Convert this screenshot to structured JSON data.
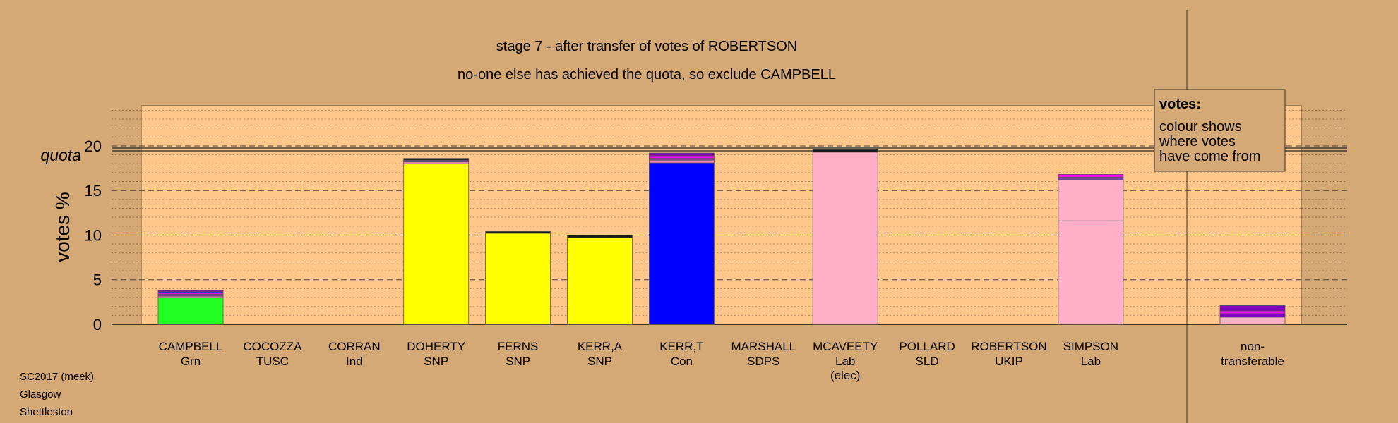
{
  "chart_data": {
    "type": "bar",
    "title": "stage 7 - after transfer of votes of ROBERTSON",
    "subtitle": "no-one else has achieved the quota, so exclude CAMPBELL",
    "ylabel": "votes %",
    "ylim": [
      0,
      24.5
    ],
    "yticks": [
      0,
      5,
      10,
      15,
      20
    ],
    "quota": 19.6,
    "quota_label": "quota",
    "grid": true,
    "legend_placement": "top-right",
    "legend": {
      "title": "votes:",
      "lines": [
        "colour shows",
        "where votes",
        "have come from"
      ]
    },
    "candidates": [
      {
        "name": "CAMPBELL",
        "party": "Grn",
        "extra": "",
        "base_color": "#22FF22",
        "segments": [
          {
            "value": 3.0,
            "color": "#22FF22"
          },
          {
            "value": 0.15,
            "color": "#FF88C0"
          },
          {
            "value": 0.2,
            "color": "#7F3F9F"
          },
          {
            "value": 0.15,
            "color": "#FF00FF"
          },
          {
            "value": 0.15,
            "color": "#2020FF"
          },
          {
            "value": 0.15,
            "color": "#8000C0"
          }
        ]
      },
      {
        "name": "COCOZZA",
        "party": "TUSC",
        "extra": "",
        "base_color": "#E00000",
        "segments": []
      },
      {
        "name": "CORRAN",
        "party": "Ind",
        "extra": "",
        "base_color": "#C0C0C0",
        "segments": []
      },
      {
        "name": "DOHERTY",
        "party": "SNP",
        "extra": "",
        "base_color": "#FFFF00",
        "segments": [
          {
            "value": 18.0,
            "color": "#FFFF00"
          },
          {
            "value": 0.2,
            "color": "#FF88C0"
          },
          {
            "value": 0.2,
            "color": "#7F3F9F"
          },
          {
            "value": 0.2,
            "color": "#1A1A1A"
          }
        ]
      },
      {
        "name": "FERNS",
        "party": "SNP",
        "extra": "",
        "base_color": "#FFFF00",
        "segments": [
          {
            "value": 10.2,
            "color": "#FFFF00"
          },
          {
            "value": 0.2,
            "color": "#1A1A1A"
          }
        ]
      },
      {
        "name": "KERR,A",
        "party": "SNP",
        "extra": "",
        "base_color": "#FFFF00",
        "segments": [
          {
            "value": 9.7,
            "color": "#FFFF00"
          },
          {
            "value": 0.3,
            "color": "#1A1A1A"
          }
        ]
      },
      {
        "name": "KERR,T",
        "party": "Con",
        "extra": "",
        "base_color": "#0000FF",
        "segments": [
          {
            "value": 18.1,
            "color": "#0000FF"
          },
          {
            "value": 0.3,
            "color": "#FF88C0"
          },
          {
            "value": 0.2,
            "color": "#7F3F9F"
          },
          {
            "value": 0.3,
            "color": "#FF00FF"
          },
          {
            "value": 0.3,
            "color": "#8000C0"
          }
        ]
      },
      {
        "name": "MARSHALL",
        "party": "SDPS",
        "extra": "",
        "base_color": "#800080",
        "segments": []
      },
      {
        "name": "MCAVEETY",
        "party": "Lab",
        "extra": "(elec)",
        "base_color": "#FFB0C8",
        "segments": [
          {
            "value": 19.3,
            "color": "#FFB0C8"
          },
          {
            "value": 0.3,
            "color": "#1A1A1A"
          }
        ]
      },
      {
        "name": "POLLARD",
        "party": "SLD",
        "extra": "",
        "base_color": "#FFA500",
        "segments": []
      },
      {
        "name": "ROBERTSON",
        "party": "UKIP",
        "extra": "",
        "base_color": "#8000C0",
        "segments": []
      },
      {
        "name": "SIMPSON",
        "party": "Lab",
        "extra": "",
        "base_color": "#FFB0C8",
        "segments": [
          {
            "value": 11.6,
            "color": "#FFB0C8"
          },
          {
            "value": 4.6,
            "color": "#FFB0C8"
          },
          {
            "value": 0.3,
            "color": "#7F3F9F"
          },
          {
            "value": 0.3,
            "color": "#FF00FF"
          }
        ]
      },
      {
        "name": "non-",
        "party": "transferable",
        "extra": "",
        "base_color": "#FFB0C8",
        "segments": [
          {
            "value": 0.8,
            "color": "#FFB0C8"
          },
          {
            "value": 0.4,
            "color": "#8000C0"
          },
          {
            "value": 0.3,
            "color": "#FF00FF"
          },
          {
            "value": 0.6,
            "color": "#8000C0"
          }
        ]
      }
    ]
  },
  "footer": {
    "line1": "SC2017 (meek)",
    "line2": "Glasgow",
    "line3": "Shettleston"
  },
  "colors": {
    "background": "#D5A976",
    "plot_area": "#FFC78A"
  }
}
